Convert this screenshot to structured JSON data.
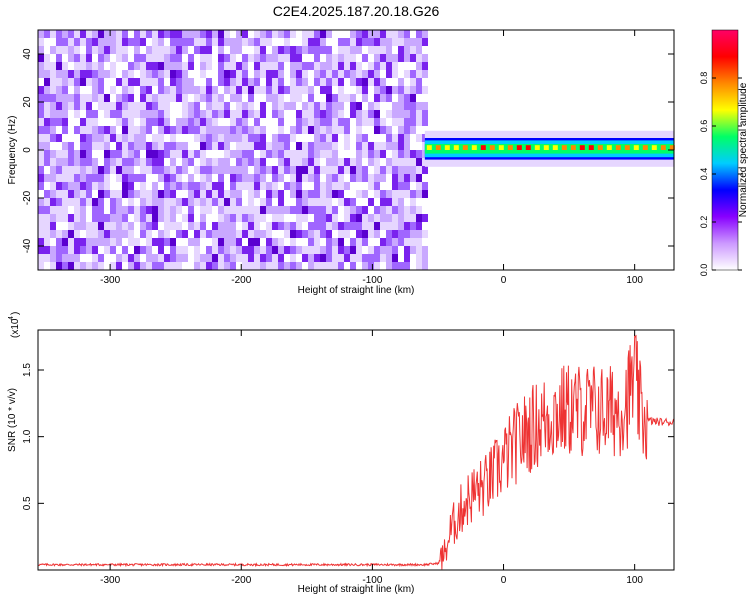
{
  "figure_title": "C2E4.2025.187.20.18.G26",
  "chart_data": [
    {
      "type": "heatmap",
      "title": "",
      "xlabel": "Height of straight line (km)",
      "ylabel": "Frequency (Hz)",
      "xlim": [
        -355,
        130
      ],
      "ylim": [
        -50,
        50
      ],
      "x_ticks": [
        -300,
        -200,
        -100,
        0,
        100
      ],
      "y_ticks": [
        -40,
        -20,
        0,
        20,
        40
      ],
      "noise_region_x": [
        -355,
        -60
      ],
      "signal_region_x": [
        -60,
        130
      ],
      "signal_band_hz": [
        -3,
        4
      ],
      "signal_peak_hz": 1,
      "colorbar": {
        "label": "Normalized spectral amplitude",
        "range": [
          0.0,
          1.0
        ],
        "ticks": [
          0.0,
          0.2,
          0.4,
          0.6,
          0.8
        ],
        "colors": [
          "#ffffff",
          "#cc99ff",
          "#8800ff",
          "#0000ff",
          "#00ccff",
          "#00ff66",
          "#ffff00",
          "#ff8800",
          "#ff0000",
          "#ff0066"
        ]
      }
    },
    {
      "type": "line",
      "title": "",
      "xlabel": "Height of straight line (km)",
      "ylabel": "SNR (10 * v/v)",
      "y_multiplier_label": "(x10",
      "y_multiplier_exp": "4",
      "xlim": [
        -355,
        130
      ],
      "ylim": [
        0,
        1.8
      ],
      "x_ticks": [
        -300,
        -200,
        -100,
        0,
        100
      ],
      "y_ticks": [
        0.5,
        1.0,
        1.5
      ],
      "y_tick_labels": [
        "0.5",
        "1.0",
        "1.5"
      ],
      "line_color": "#ee3333",
      "series": [
        {
          "x": [
            -355,
            -300,
            -250,
            -200,
            -150,
            -100,
            -60,
            -50,
            -45,
            -40,
            -35,
            -30,
            -25,
            -20,
            -15,
            -10,
            -5,
            0,
            10,
            20,
            30,
            40,
            50,
            60,
            70,
            80,
            90,
            95,
            100,
            105,
            110,
            120,
            130
          ],
          "y": [
            0.04,
            0.04,
            0.04,
            0.04,
            0.04,
            0.04,
            0.04,
            0.05,
            0.12,
            0.3,
            0.4,
            0.5,
            0.55,
            0.6,
            0.62,
            0.68,
            0.75,
            0.82,
            0.95,
            1.05,
            1.12,
            1.18,
            1.2,
            1.2,
            1.2,
            1.18,
            1.22,
            1.3,
            1.45,
            1.15,
            1.12,
            1.11,
            1.11
          ]
        }
      ]
    }
  ]
}
